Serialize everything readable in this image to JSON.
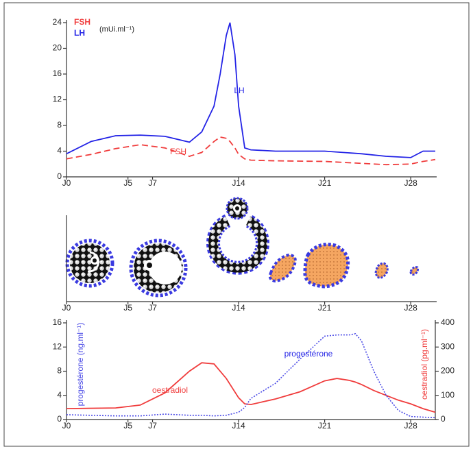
{
  "chart_data": [
    {
      "type": "line",
      "y_label": "(mUi.ml⁻¹)",
      "x": [
        0,
        2,
        4,
        6,
        8,
        10,
        11,
        12,
        12.5,
        13,
        13.3,
        13.7,
        14,
        14.5,
        15,
        17,
        21,
        24,
        26,
        28,
        29,
        30
      ],
      "series": [
        {
          "name": "FSH",
          "color": "#f03c3c",
          "dash": "dashed",
          "values": [
            2.8,
            3.5,
            4.4,
            5,
            4.5,
            3.2,
            3.8,
            5.5,
            6.2,
            6,
            5.5,
            4.5,
            3.5,
            2.8,
            2.6,
            2.5,
            2.4,
            2.1,
            1.9,
            2,
            2.4,
            2.7
          ]
        },
        {
          "name": "LH",
          "color": "#2323e6",
          "dash": "solid",
          "values": [
            3.6,
            5.5,
            6.4,
            6.5,
            6.3,
            5.4,
            7,
            11,
            16,
            22,
            24,
            19,
            11,
            4.5,
            4.2,
            4,
            4,
            3.6,
            3.2,
            3,
            4,
            4
          ]
        }
      ],
      "annotations": [
        "LH",
        "FSH"
      ],
      "xlim": [
        0,
        30
      ],
      "ylim": [
        0,
        24
      ],
      "xticks": [
        {
          "value": 0,
          "label": "J0"
        },
        {
          "value": 5,
          "label": "J5"
        },
        {
          "value": 7,
          "label": "J7"
        },
        {
          "value": 14,
          "label": "J14"
        },
        {
          "value": 21,
          "label": "J21"
        },
        {
          "value": 28,
          "label": "J28"
        }
      ],
      "yticks": [
        0,
        4,
        8,
        12,
        16,
        20,
        24
      ]
    },
    {
      "type": "diagram",
      "xlim": [
        0,
        30
      ],
      "xticks": [
        {
          "value": 0,
          "label": "J0"
        },
        {
          "value": 5,
          "label": "J5"
        },
        {
          "value": 7,
          "label": "J7"
        },
        {
          "value": 14,
          "label": "J14"
        },
        {
          "value": 21,
          "label": "J21"
        },
        {
          "value": 28,
          "label": "J28"
        }
      ]
    },
    {
      "type": "line",
      "y_label": "progestérone (ng.ml⁻¹)",
      "y2_label": "oestradiol (pg.ml⁻¹)",
      "x": [
        0,
        4,
        6,
        8,
        10,
        11,
        12,
        13,
        14,
        14.5,
        15,
        17,
        19,
        21,
        22,
        23,
        23.5,
        24,
        25,
        26,
        27,
        28,
        29,
        30
      ],
      "series": [
        {
          "name": "oestradiol",
          "color": "#f03c3c",
          "dash": "solid",
          "axis": "y2",
          "values": [
            45,
            48,
            60,
            110,
            200,
            235,
            230,
            170,
            90,
            65,
            62,
            85,
            115,
            160,
            170,
            162,
            155,
            145,
            120,
            100,
            80,
            65,
            45,
            30
          ]
        },
        {
          "name": "progestérone",
          "color": "#4a4ae6",
          "dash": "dotted",
          "values": [
            0.8,
            0.6,
            0.6,
            0.9,
            0.7,
            0.7,
            0.6,
            0.7,
            1.2,
            2,
            3.5,
            6,
            10,
            13.8,
            14,
            14,
            14.2,
            13,
            8,
            4,
            1.5,
            0.5,
            0.4,
            0.3
          ]
        }
      ],
      "annotations": [
        "oestradiol",
        "progestérone"
      ],
      "xlim": [
        0,
        30
      ],
      "ylim": [
        0,
        16
      ],
      "y2lim": [
        0,
        400
      ],
      "xticks": [
        {
          "value": 0,
          "label": "J0"
        },
        {
          "value": 5,
          "label": "J5"
        },
        {
          "value": 7,
          "label": "J7"
        },
        {
          "value": 14,
          "label": "J14"
        },
        {
          "value": 21,
          "label": "J21"
        },
        {
          "value": 28,
          "label": "J28"
        }
      ],
      "yticks": [
        0,
        4,
        8,
        12,
        16
      ],
      "y2ticks": [
        0,
        100,
        200,
        300,
        400
      ]
    }
  ]
}
